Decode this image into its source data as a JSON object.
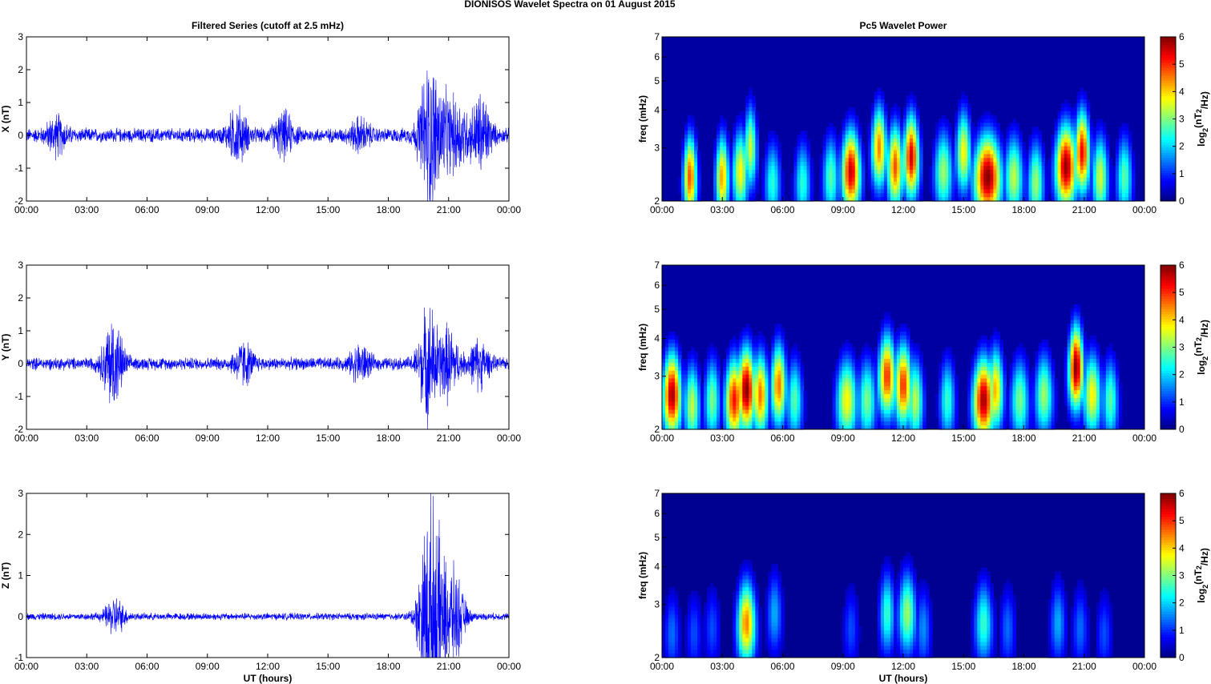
{
  "figure": {
    "title": "DIONISOS Wavelet Spectra on 01 August    2015",
    "left_title": "Filtered Series (cutoff at 2.5 mHz)",
    "right_title": "Pc5 Wavelet Power",
    "x_tick_labels": [
      "00:00",
      "03:00",
      "06:00",
      "09:00",
      "12:00",
      "15:00",
      "18:00",
      "21:00",
      "00:00"
    ],
    "xlabel": "UT (hours)",
    "freq_label": "freq (mHz)",
    "freq_ticks": [
      "2",
      "3",
      "4",
      "5",
      "6",
      "7"
    ],
    "colorbar_label": "log2(nT2/Hz)",
    "colorbar_ticks": [
      "0",
      "1",
      "2",
      "3",
      "4",
      "5",
      "6"
    ]
  },
  "chart_data": [
    {
      "type": "line",
      "component": "X",
      "ylabel": "X (nT)",
      "xlim": [
        0,
        24
      ],
      "ylim": [
        -2,
        3
      ],
      "yticks": [
        -2,
        -1,
        0,
        1,
        2,
        3
      ],
      "color": "#0000ff",
      "baseline_amplitude": 0.25,
      "bursts": [
        {
          "t": 1.5,
          "amp": 0.6
        },
        {
          "t": 10.5,
          "amp": 0.9
        },
        {
          "t": 12.8,
          "amp": 0.7
        },
        {
          "t": 16.6,
          "amp": 0.5
        },
        {
          "t": 20.0,
          "amp": 2.4
        },
        {
          "t": 20.7,
          "amp": 1.2
        },
        {
          "t": 21.5,
          "amp": 1.1
        },
        {
          "t": 22.6,
          "amp": 1.4
        }
      ]
    },
    {
      "type": "line",
      "component": "Y",
      "ylabel": "Y (nT)",
      "xlim": [
        0,
        24
      ],
      "ylim": [
        -2,
        3
      ],
      "yticks": [
        -2,
        -1,
        0,
        1,
        2,
        3
      ],
      "color": "#0000ff",
      "baseline_amplitude": 0.22,
      "bursts": [
        {
          "t": 4.3,
          "amp": 1.6
        },
        {
          "t": 10.8,
          "amp": 0.7
        },
        {
          "t": 16.6,
          "amp": 0.6
        },
        {
          "t": 20.0,
          "amp": 2.0
        },
        {
          "t": 21.0,
          "amp": 1.2
        },
        {
          "t": 22.5,
          "amp": 0.8
        }
      ]
    },
    {
      "type": "line",
      "component": "Z",
      "ylabel": "Z (nT)",
      "xlim": [
        0,
        24
      ],
      "ylim": [
        -1,
        3
      ],
      "yticks": [
        -1,
        0,
        1,
        2,
        3
      ],
      "color": "#0000ff",
      "baseline_amplitude": 0.1,
      "bursts": [
        {
          "t": 4.4,
          "amp": 0.5
        },
        {
          "t": 20.0,
          "amp": 2.7
        },
        {
          "t": 20.5,
          "amp": 1.4
        },
        {
          "t": 21.3,
          "amp": 1.2
        }
      ]
    },
    {
      "type": "heatmap",
      "component": "X",
      "title": "Pc5 Wavelet Power",
      "xlim": [
        0,
        24
      ],
      "ylim_mHz": [
        2,
        7
      ],
      "log_y": true,
      "colorbar_range": [
        0,
        6
      ],
      "colormap": "jet",
      "background_level": 0.2,
      "blobs": [
        {
          "t": 1.4,
          "f": 2.4,
          "p": 4.8,
          "w": 0.25
        },
        {
          "t": 3.0,
          "f": 2.4,
          "p": 4.3,
          "w": 0.25
        },
        {
          "t": 3.9,
          "f": 2.5,
          "p": 3.8,
          "w": 0.3
        },
        {
          "t": 4.4,
          "f": 3.0,
          "p": 3.5,
          "w": 0.25
        },
        {
          "t": 5.5,
          "f": 2.3,
          "p": 2.5,
          "w": 0.3
        },
        {
          "t": 7.0,
          "f": 2.3,
          "p": 2.5,
          "w": 0.3
        },
        {
          "t": 8.4,
          "f": 2.4,
          "p": 2.8,
          "w": 0.3
        },
        {
          "t": 9.4,
          "f": 2.5,
          "p": 5.6,
          "w": 0.35
        },
        {
          "t": 10.8,
          "f": 3.0,
          "p": 4.5,
          "w": 0.3
        },
        {
          "t": 11.6,
          "f": 2.6,
          "p": 4.8,
          "w": 0.3
        },
        {
          "t": 12.4,
          "f": 2.8,
          "p": 5.5,
          "w": 0.3
        },
        {
          "t": 14.0,
          "f": 2.5,
          "p": 3.2,
          "w": 0.35
        },
        {
          "t": 15.0,
          "f": 2.9,
          "p": 3.8,
          "w": 0.3
        },
        {
          "t": 16.2,
          "f": 2.4,
          "p": 6.0,
          "w": 0.5
        },
        {
          "t": 17.5,
          "f": 2.4,
          "p": 3.4,
          "w": 0.35
        },
        {
          "t": 18.6,
          "f": 2.3,
          "p": 3.2,
          "w": 0.3
        },
        {
          "t": 20.1,
          "f": 2.6,
          "p": 5.9,
          "w": 0.4
        },
        {
          "t": 20.9,
          "f": 2.9,
          "p": 5.3,
          "w": 0.3
        },
        {
          "t": 21.8,
          "f": 2.4,
          "p": 3.5,
          "w": 0.3
        },
        {
          "t": 23.0,
          "f": 2.4,
          "p": 2.8,
          "w": 0.3
        }
      ]
    },
    {
      "type": "heatmap",
      "component": "Y",
      "title": "",
      "xlim": [
        0,
        24
      ],
      "ylim_mHz": [
        2,
        7
      ],
      "log_y": true,
      "colorbar_range": [
        0,
        6
      ],
      "colormap": "jet",
      "background_level": 0.2,
      "blobs": [
        {
          "t": 0.5,
          "f": 2.6,
          "p": 5.8,
          "w": 0.35
        },
        {
          "t": 1.5,
          "f": 2.4,
          "p": 3.4,
          "w": 0.3
        },
        {
          "t": 2.5,
          "f": 2.5,
          "p": 3.0,
          "w": 0.3
        },
        {
          "t": 3.6,
          "f": 2.5,
          "p": 5.2,
          "w": 0.35
        },
        {
          "t": 4.2,
          "f": 2.7,
          "p": 6.0,
          "w": 0.35
        },
        {
          "t": 4.9,
          "f": 2.6,
          "p": 4.6,
          "w": 0.3
        },
        {
          "t": 5.8,
          "f": 2.8,
          "p": 4.6,
          "w": 0.3
        },
        {
          "t": 6.6,
          "f": 2.5,
          "p": 2.8,
          "w": 0.3
        },
        {
          "t": 9.2,
          "f": 2.5,
          "p": 3.8,
          "w": 0.4
        },
        {
          "t": 10.2,
          "f": 2.5,
          "p": 3.0,
          "w": 0.35
        },
        {
          "t": 11.2,
          "f": 3.0,
          "p": 5.0,
          "w": 0.35
        },
        {
          "t": 12.0,
          "f": 2.8,
          "p": 5.0,
          "w": 0.35
        },
        {
          "t": 12.6,
          "f": 2.5,
          "p": 3.4,
          "w": 0.3
        },
        {
          "t": 14.2,
          "f": 2.5,
          "p": 2.6,
          "w": 0.3
        },
        {
          "t": 16.0,
          "f": 2.5,
          "p": 5.8,
          "w": 0.4
        },
        {
          "t": 16.6,
          "f": 2.7,
          "p": 4.2,
          "w": 0.3
        },
        {
          "t": 17.8,
          "f": 2.5,
          "p": 3.0,
          "w": 0.35
        },
        {
          "t": 19.0,
          "f": 2.6,
          "p": 3.2,
          "w": 0.35
        },
        {
          "t": 20.6,
          "f": 3.2,
          "p": 6.0,
          "w": 0.3
        },
        {
          "t": 21.4,
          "f": 2.6,
          "p": 3.8,
          "w": 0.35
        },
        {
          "t": 22.3,
          "f": 2.5,
          "p": 2.8,
          "w": 0.3
        }
      ]
    },
    {
      "type": "heatmap",
      "component": "Z",
      "title": "",
      "xlim": [
        0,
        24
      ],
      "ylim_mHz": [
        2,
        7
      ],
      "log_y": true,
      "colorbar_range": [
        0,
        6
      ],
      "colormap": "jet",
      "background_level": 0.1,
      "blobs": [
        {
          "t": 0.5,
          "f": 2.4,
          "p": 1.4,
          "w": 0.3
        },
        {
          "t": 1.6,
          "f": 2.4,
          "p": 1.2,
          "w": 0.3
        },
        {
          "t": 2.5,
          "f": 2.5,
          "p": 1.2,
          "w": 0.3
        },
        {
          "t": 4.2,
          "f": 2.6,
          "p": 4.5,
          "w": 0.35
        },
        {
          "t": 5.6,
          "f": 2.8,
          "p": 1.8,
          "w": 0.3
        },
        {
          "t": 9.4,
          "f": 2.5,
          "p": 1.2,
          "w": 0.3
        },
        {
          "t": 11.2,
          "f": 2.8,
          "p": 2.6,
          "w": 0.3
        },
        {
          "t": 12.2,
          "f": 2.8,
          "p": 3.2,
          "w": 0.35
        },
        {
          "t": 13.0,
          "f": 2.5,
          "p": 1.6,
          "w": 0.3
        },
        {
          "t": 16.0,
          "f": 2.6,
          "p": 2.6,
          "w": 0.35
        },
        {
          "t": 17.2,
          "f": 2.5,
          "p": 1.4,
          "w": 0.3
        },
        {
          "t": 19.7,
          "f": 2.6,
          "p": 1.8,
          "w": 0.3
        },
        {
          "t": 20.8,
          "f": 2.5,
          "p": 1.4,
          "w": 0.3
        },
        {
          "t": 22.0,
          "f": 2.4,
          "p": 1.2,
          "w": 0.3
        }
      ]
    }
  ]
}
